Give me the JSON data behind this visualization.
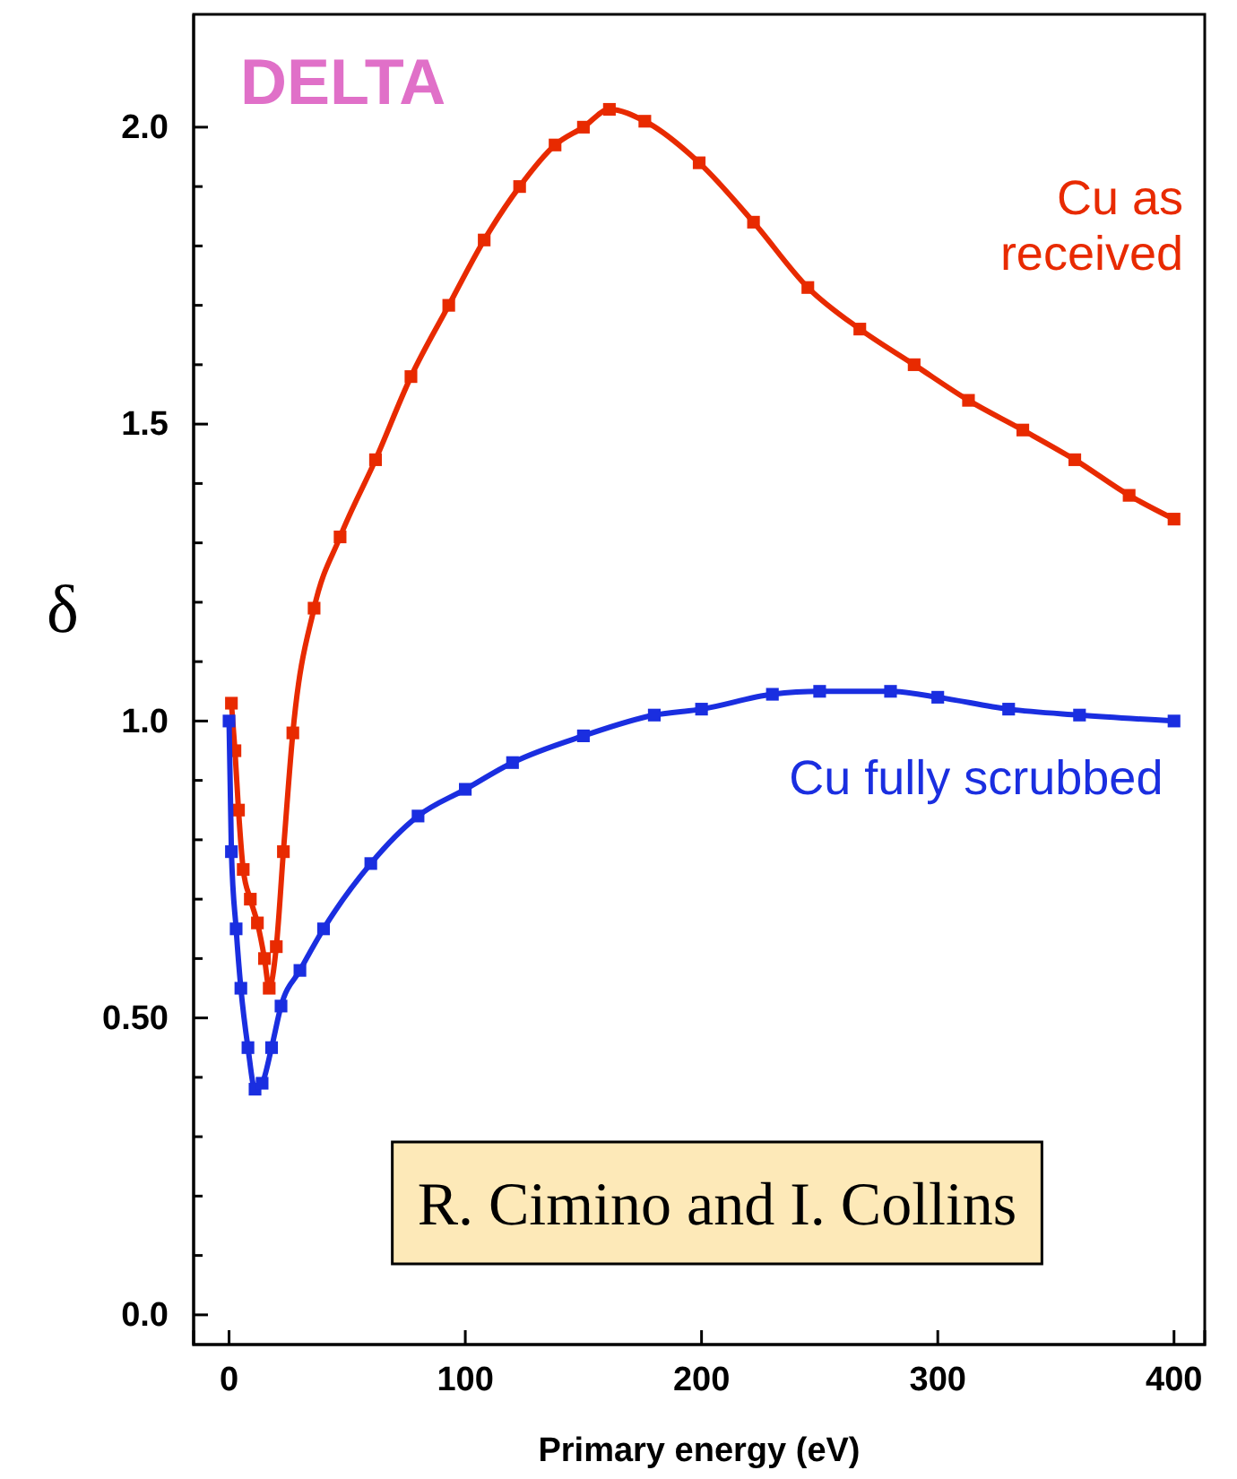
{
  "chart_data": {
    "type": "line",
    "xlabel": "Primary energy (eV)",
    "ylabel": "δ",
    "xlim": [
      -15,
      413
    ],
    "ylim": [
      -0.05,
      2.19
    ],
    "xticks": [
      0,
      100,
      200,
      300,
      400
    ],
    "yticks": [
      {
        "value": 0,
        "label": "0.0"
      },
      {
        "value": 0.1,
        "label": null
      },
      {
        "value": 0.2,
        "label": null
      },
      {
        "value": 0.3,
        "label": null
      },
      {
        "value": 0.4,
        "label": null
      },
      {
        "value": 0.5,
        "label": "0.50"
      },
      {
        "value": 0.6,
        "label": null
      },
      {
        "value": 0.7,
        "label": null
      },
      {
        "value": 0.8,
        "label": null
      },
      {
        "value": 0.9,
        "label": null
      },
      {
        "value": 1.0,
        "label": "1.0"
      },
      {
        "value": 1.1,
        "label": null
      },
      {
        "value": 1.2,
        "label": null
      },
      {
        "value": 1.3,
        "label": null
      },
      {
        "value": 1.4,
        "label": null
      },
      {
        "value": 1.5,
        "label": "1.5"
      },
      {
        "value": 1.6,
        "label": null
      },
      {
        "value": 1.7,
        "label": null
      },
      {
        "value": 1.8,
        "label": null
      },
      {
        "value": 1.9,
        "label": null
      },
      {
        "value": 2.0,
        "label": "2.0"
      }
    ],
    "grid": false,
    "marker": "square",
    "line_style": "solid",
    "series": [
      {
        "name": "Cu as received",
        "color": "#e82a00",
        "x": [
          1,
          2.5,
          4,
          6,
          9,
          12,
          15,
          17,
          20,
          23,
          27,
          36,
          47,
          62,
          77,
          93,
          108,
          123,
          138,
          150,
          161,
          176,
          199,
          222,
          245,
          267,
          290,
          313,
          336,
          358,
          381,
          400
        ],
        "values": [
          1.03,
          0.95,
          0.85,
          0.75,
          0.7,
          0.66,
          0.6,
          0.55,
          0.62,
          0.78,
          0.98,
          1.19,
          1.31,
          1.44,
          1.58,
          1.7,
          1.81,
          1.9,
          1.97,
          2.0,
          2.03,
          2.01,
          1.94,
          1.84,
          1.73,
          1.66,
          1.6,
          1.54,
          1.49,
          1.44,
          1.38,
          1.34
        ]
      },
      {
        "name": "Cu fully scrubbed",
        "color": "#1a2ee0",
        "x": [
          0,
          1,
          3,
          5,
          8,
          11,
          14,
          18,
          22,
          30,
          40,
          60,
          80,
          100,
          120,
          150,
          180,
          200,
          230,
          250,
          280,
          300,
          330,
          360,
          400
        ],
        "values": [
          1.0,
          0.78,
          0.65,
          0.55,
          0.45,
          0.38,
          0.39,
          0.45,
          0.52,
          0.58,
          0.65,
          0.76,
          0.84,
          0.885,
          0.93,
          0.975,
          1.01,
          1.02,
          1.045,
          1.05,
          1.05,
          1.04,
          1.02,
          1.01,
          1.0
        ]
      }
    ],
    "annotations": [
      "DELTA",
      "R. Cimino and I. Collins"
    ]
  }
}
